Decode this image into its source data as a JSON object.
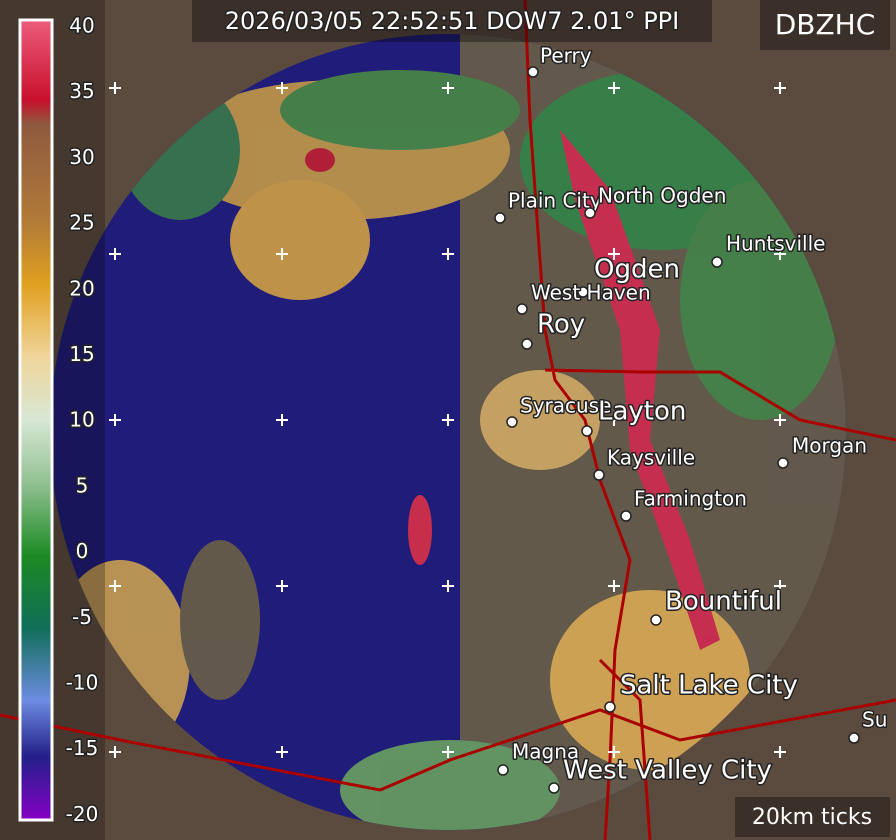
{
  "header": {
    "title": "2026/03/05 22:52:51 DOW7 2.01° PPI",
    "product": "DBZHC",
    "scale_note": "20km ticks"
  },
  "colorbar": {
    "labels": [
      40,
      35,
      30,
      25,
      20,
      15,
      10,
      5,
      0,
      -5,
      -10,
      -15,
      -20
    ]
  },
  "places": [
    {
      "name": "Perry"
    },
    {
      "name": "Plain City"
    },
    {
      "name": "North Ogden"
    },
    {
      "name": "Huntsville"
    },
    {
      "name": "Ogden"
    },
    {
      "name": "West Haven"
    },
    {
      "name": "Roy"
    },
    {
      "name": "Syracuse"
    },
    {
      "name": "Layton"
    },
    {
      "name": "Kaysville"
    },
    {
      "name": "Farmington"
    },
    {
      "name": "Morgan"
    },
    {
      "name": "Bountiful"
    },
    {
      "name": "Salt Lake City"
    },
    {
      "name": "Magna"
    },
    {
      "name": "West Valley City"
    },
    {
      "name": "Su"
    }
  ]
}
